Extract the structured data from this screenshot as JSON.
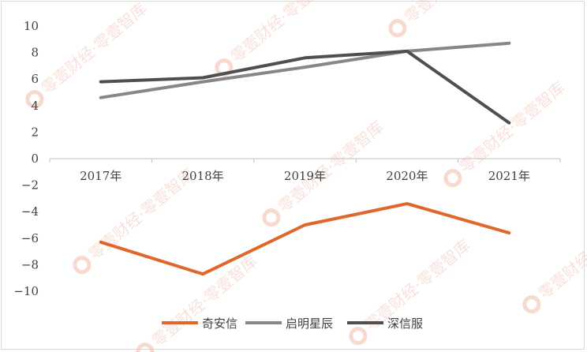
{
  "chart_data": {
    "type": "line",
    "title": "",
    "xlabel": "",
    "ylabel": "",
    "categories": [
      "2017年",
      "2018年",
      "2019年",
      "2020年",
      "2021年"
    ],
    "ylim": [
      -10,
      10
    ],
    "yticks": [
      10,
      8,
      6,
      4,
      2,
      0,
      -2,
      -4,
      -6,
      -8,
      -10
    ],
    "ytick_labels": [
      "10",
      "8",
      "6",
      "4",
      "2",
      "0",
      "−2",
      "−4",
      "−6",
      "−8",
      "−10"
    ],
    "grid": false,
    "legend_position": "bottom",
    "series": [
      {
        "name": "奇安信",
        "color": "#e0672b",
        "values": [
          -6.3,
          -8.7,
          -5.0,
          -3.4,
          -5.6
        ]
      },
      {
        "name": "启明星辰",
        "color": "#878787",
        "values": [
          4.6,
          5.8,
          6.9,
          8.1,
          8.7
        ]
      },
      {
        "name": "深信服",
        "color": "#4f4f4f",
        "values": [
          5.8,
          6.1,
          7.6,
          8.1,
          2.7
        ]
      }
    ]
  },
  "watermark": {
    "text": "零壹财经·零壹智库",
    "logo_color": "#f3b9a6"
  }
}
